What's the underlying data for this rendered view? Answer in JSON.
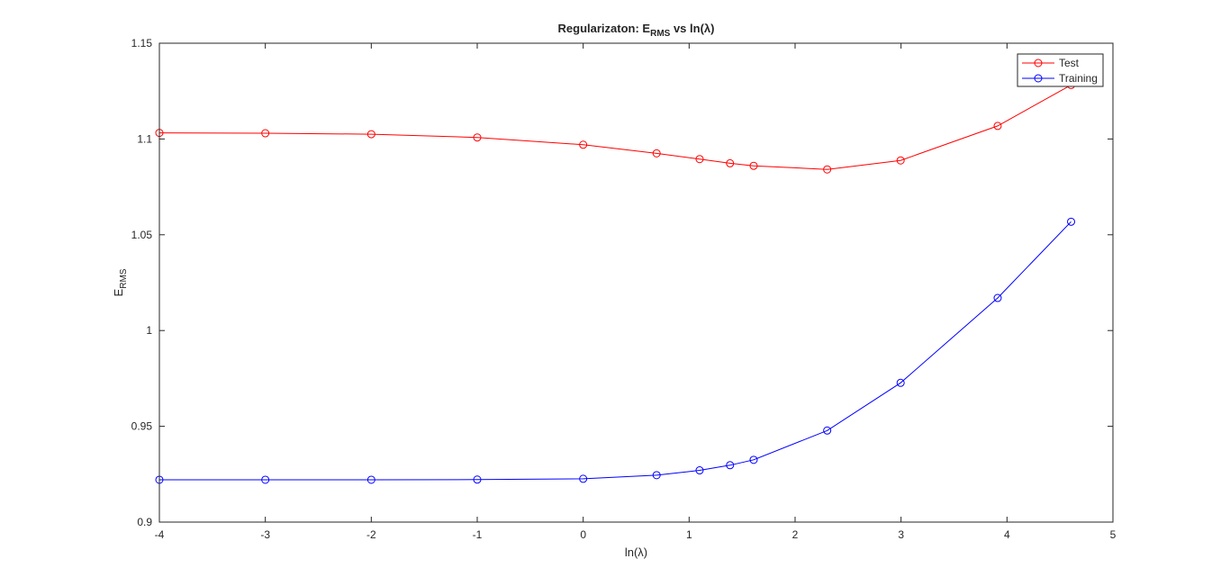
{
  "chart_data": {
    "type": "line",
    "title": "Regularizaton: E",
    "title_sub": "RMS",
    "title_rest": " vs ln(λ)",
    "xlabel": "ln(λ)",
    "ylabel": "E",
    "ylabel_sub": "RMS",
    "xlim": [
      -4,
      5
    ],
    "ylim": [
      0.9,
      1.15
    ],
    "xticks": [
      -4,
      -3,
      -2,
      -1,
      0,
      1,
      2,
      3,
      4,
      5
    ],
    "xtick_labels": [
      "-4",
      "-3",
      "-2",
      "-1",
      "0",
      "1",
      "2",
      "3",
      "4",
      "5"
    ],
    "yticks": [
      0.9,
      0.95,
      1.0,
      1.05,
      1.1,
      1.15
    ],
    "ytick_labels": [
      "0.9",
      "0.95",
      "1",
      "1.05",
      "1.1",
      "1.15"
    ],
    "x": [
      -4,
      -3,
      -2,
      -1,
      0,
      0.693,
      1.099,
      1.386,
      1.609,
      2.303,
      2.996,
      3.912,
      4.605
    ],
    "series": [
      {
        "name": "Test",
        "color": "#ff0000",
        "values": [
          1.1032,
          1.103,
          1.1025,
          1.1008,
          1.097,
          1.0925,
          1.0895,
          1.0873,
          1.086,
          1.0841,
          1.0888,
          1.1068,
          1.1282
        ]
      },
      {
        "name": "Training",
        "color": "#0000ff",
        "values": [
          0.9221,
          0.9221,
          0.9221,
          0.9222,
          0.9226,
          0.9245,
          0.927,
          0.9297,
          0.9325,
          0.9478,
          0.9727,
          1.017,
          1.0568
        ]
      }
    ],
    "grid": false,
    "legend_position": "top-right"
  }
}
